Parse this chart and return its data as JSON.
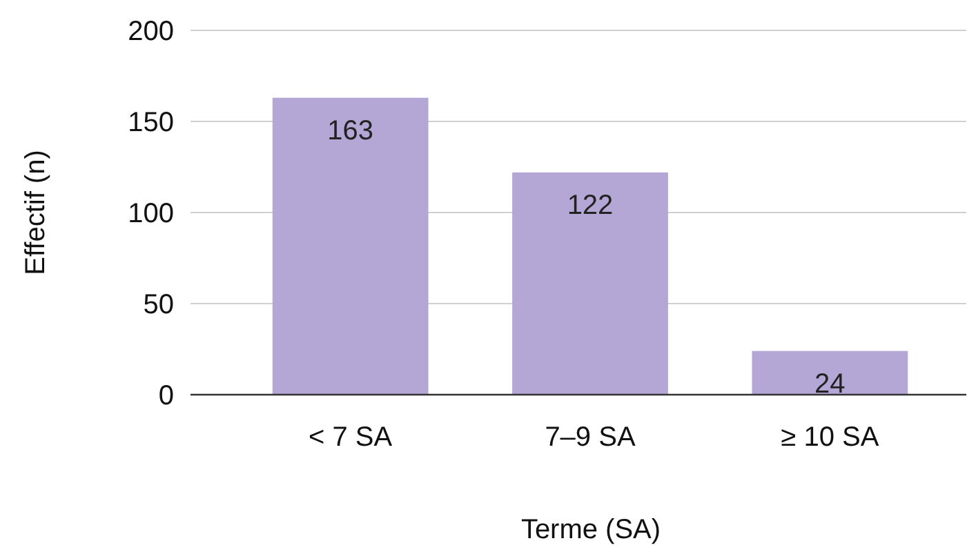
{
  "chart_data": {
    "type": "bar",
    "xlabel": "Terme (SA)",
    "ylabel": "Effectif (n)",
    "categories": [
      "< 7 SA",
      "7–9 SA",
      "≥ 10 SA"
    ],
    "values": [
      163,
      122,
      24
    ],
    "color": "#b4a7d6",
    "ylim": [
      0,
      200
    ],
    "yticks": [
      0,
      50,
      100,
      150,
      200
    ],
    "grid": "y",
    "data_labels": true
  }
}
